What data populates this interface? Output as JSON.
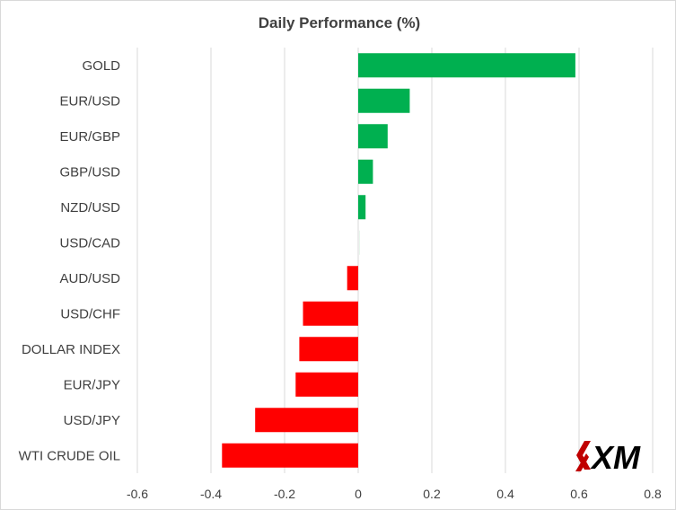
{
  "chart_data": {
    "type": "bar",
    "orientation": "horizontal",
    "title": "Daily Performance (%)",
    "xlabel": "",
    "ylabel": "",
    "xlim": [
      -0.6,
      0.8
    ],
    "x_ticks": [
      "-0.6",
      "-0.4",
      "-0.2",
      "0",
      "0.2",
      "0.4",
      "0.6",
      "0.8"
    ],
    "tick_values": [
      -0.6,
      -0.4,
      -0.2,
      0,
      0.2,
      0.4,
      0.6,
      0.8
    ],
    "grid": true,
    "legend": "none",
    "categories": [
      "GOLD",
      "EUR/USD",
      "EUR/GBP",
      "GBP/USD",
      "NZD/USD",
      "USD/CAD",
      "AUD/USD",
      "USD/CHF",
      "DOLLAR INDEX",
      "EUR/JPY",
      "USD/JPY",
      "WTI CRUDE OIL"
    ],
    "values": [
      0.59,
      0.14,
      0.08,
      0.04,
      0.02,
      0.0,
      -0.03,
      -0.15,
      -0.16,
      -0.17,
      -0.28,
      -0.37
    ],
    "colors": {
      "positive": "#00b050",
      "negative": "#ff0000",
      "grid": "#d9d9d9",
      "text": "#404040"
    }
  },
  "logo": {
    "text": "XM",
    "icon": "xm-logo-icon",
    "color": "#000000",
    "accent": "#c00000"
  }
}
